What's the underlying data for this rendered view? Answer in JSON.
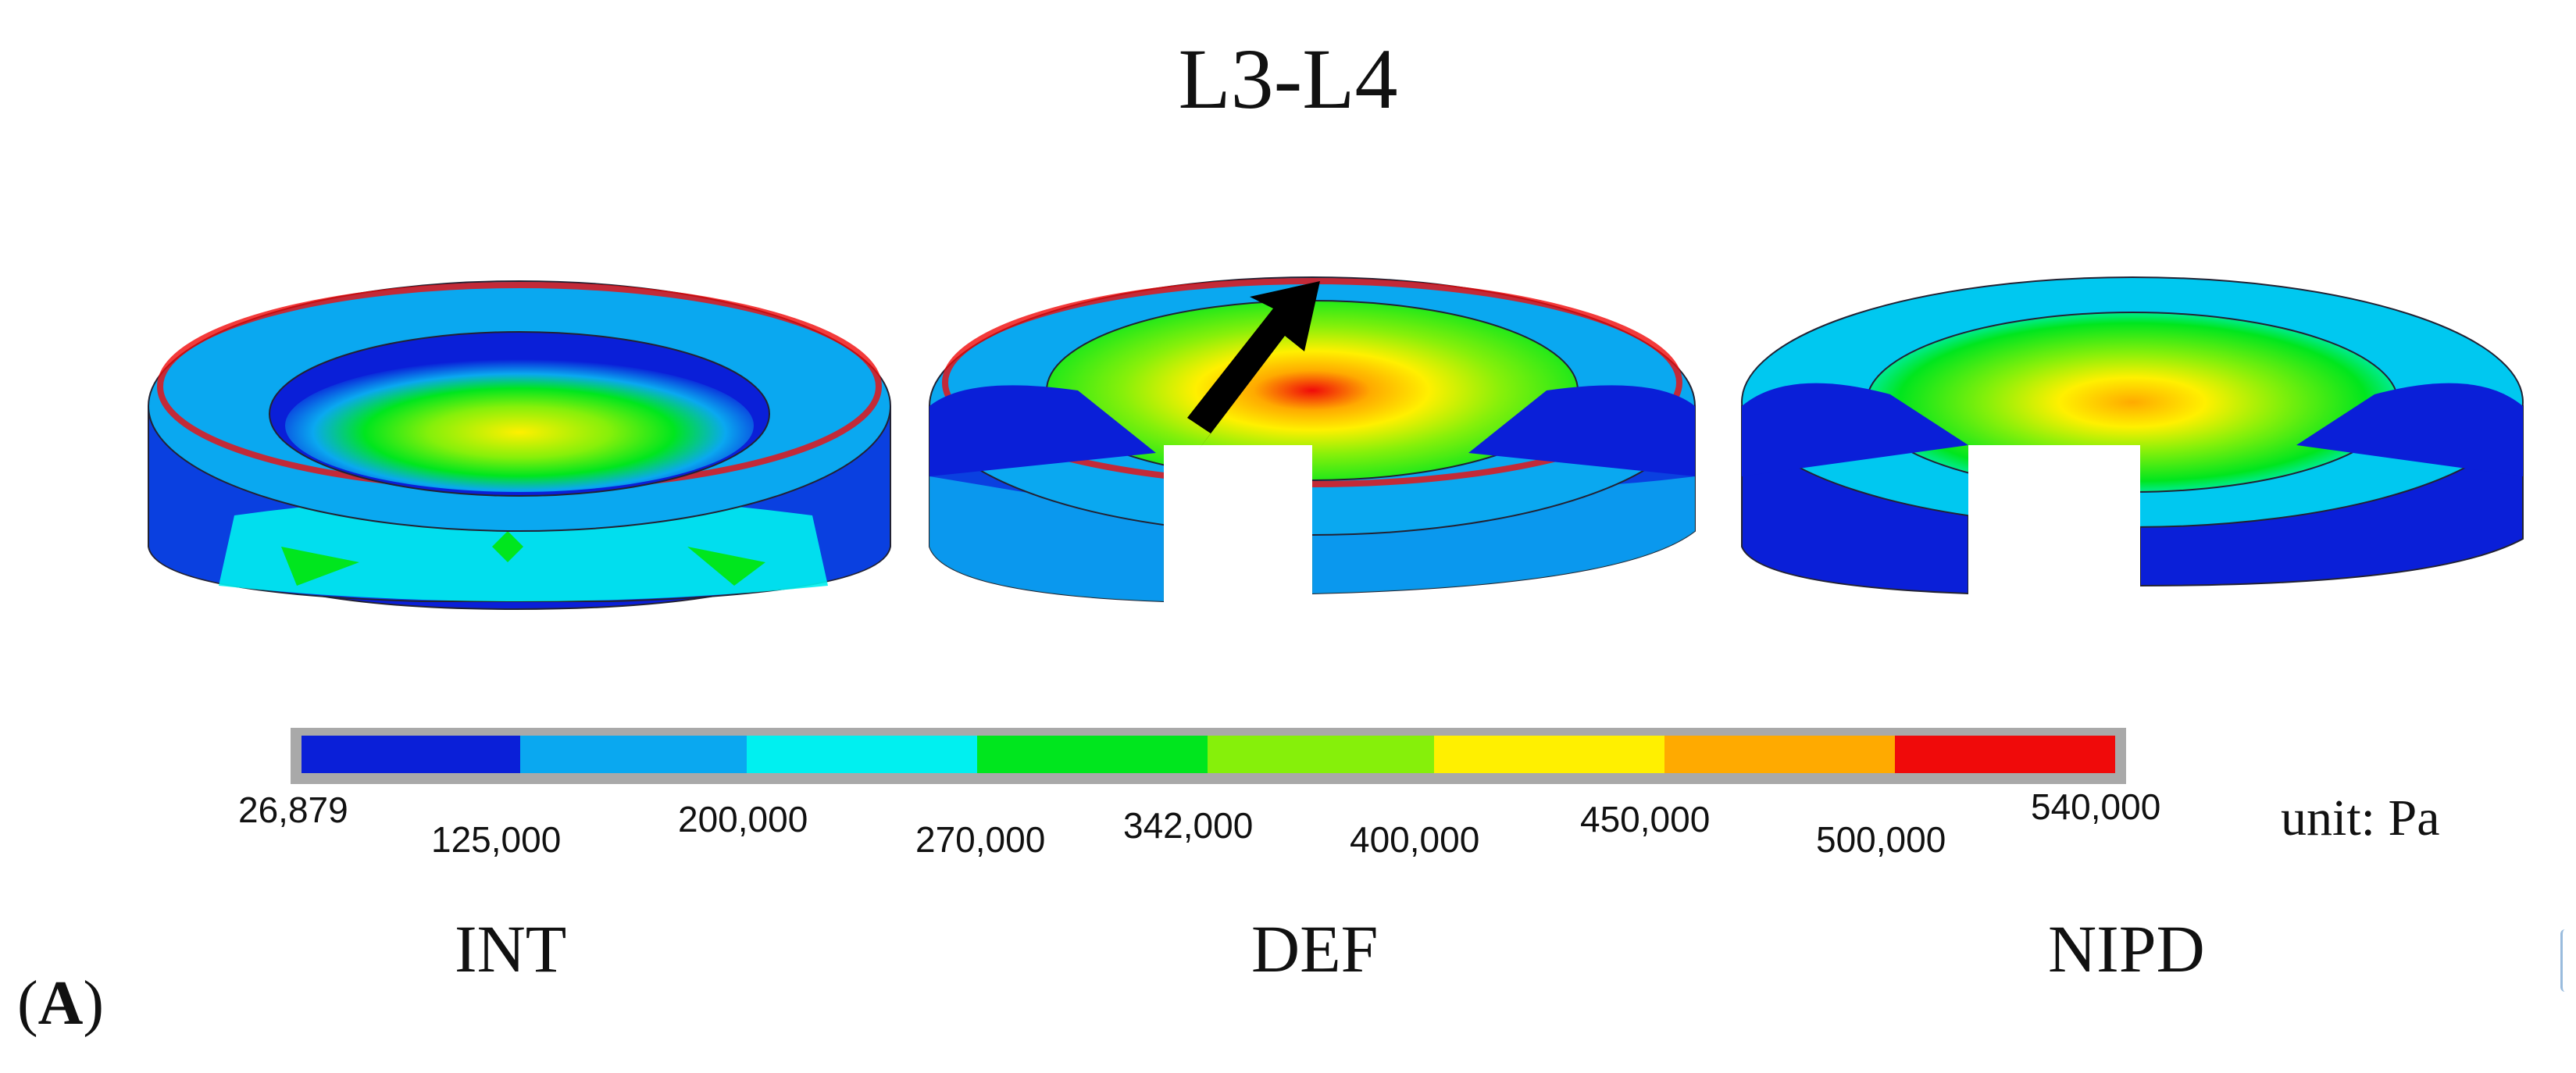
{
  "title": "L3-L4",
  "colorbar": {
    "colors": [
      "#0a1fd8",
      "#0aa8f0",
      "#00f0f0",
      "#00e61e",
      "#86f00a",
      "#fff000",
      "#ffaa00",
      "#f00a0a"
    ],
    "ticks": [
      "26,879",
      "125,000",
      "200,000",
      "270,000",
      "342,000",
      "400,000",
      "450,000",
      "500,000",
      "540,000"
    ],
    "unit": "unit: Pa"
  },
  "models": [
    "INT",
    "DEF",
    "NIPD"
  ],
  "panel_label": {
    "open": "(",
    "letter": "A",
    "close": ")"
  }
}
